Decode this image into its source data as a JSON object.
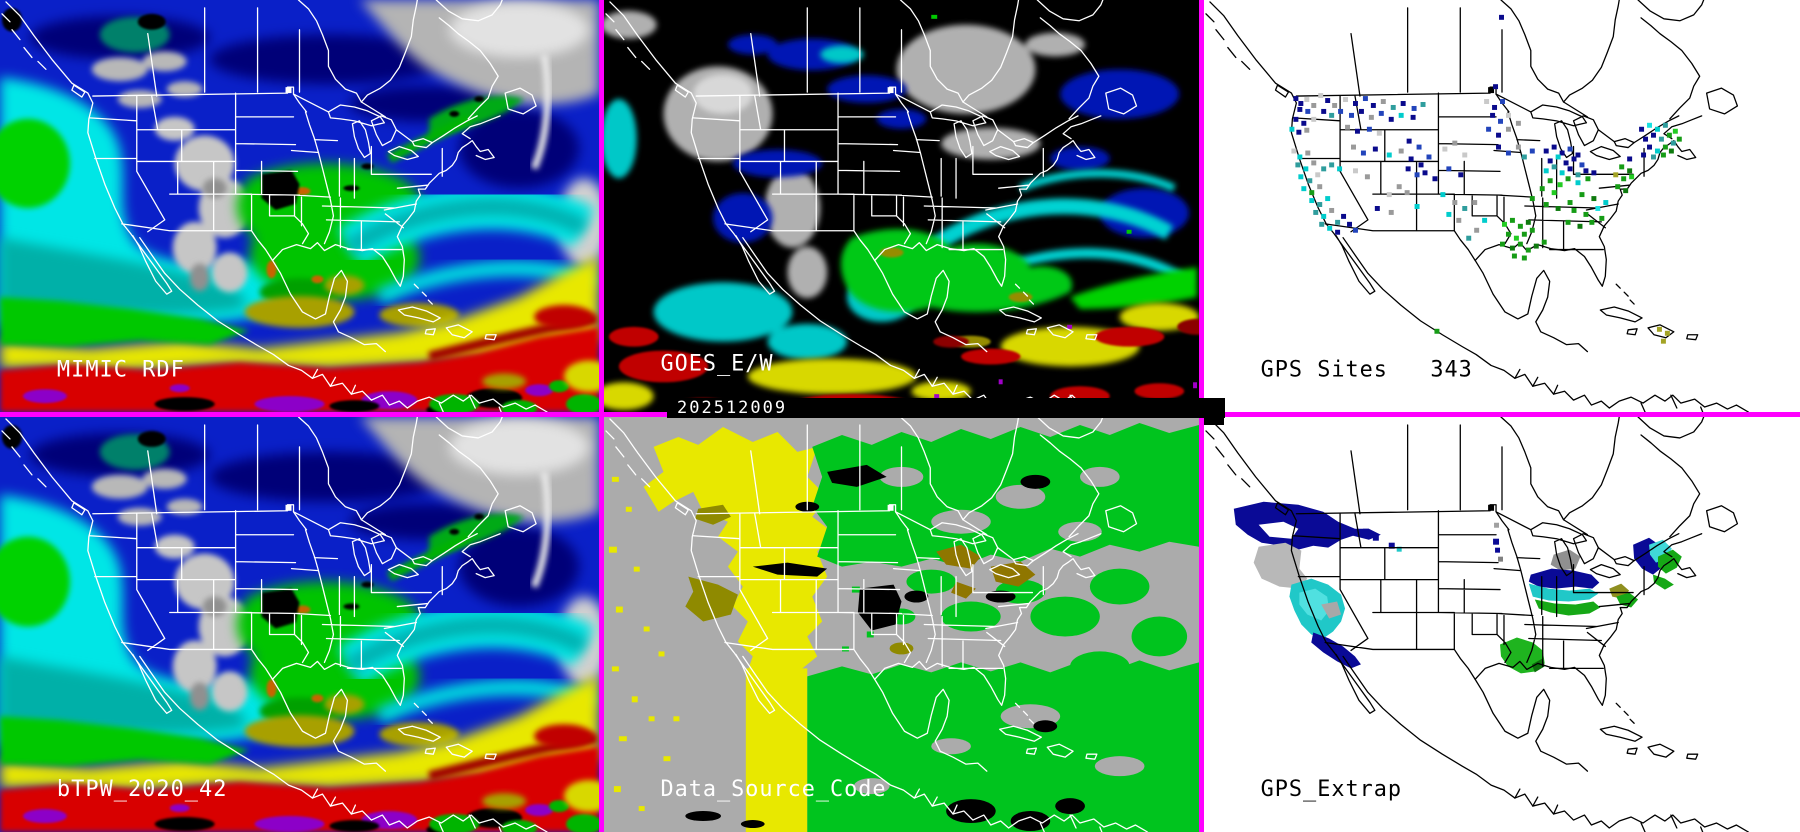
{
  "panels": [
    {
      "id": "mimic-rdf",
      "label": "MIMIC RDF"
    },
    {
      "id": "goes-ew",
      "label": "GOES_E/W",
      "timestamp": "202512009"
    },
    {
      "id": "gps-sites",
      "label": "GPS Sites   343",
      "site_count": "343"
    },
    {
      "id": "btpw",
      "label": "bTPW_2020_42"
    },
    {
      "id": "data-source-code",
      "label": "Data_Source_Code"
    },
    {
      "id": "gps-extrap",
      "label": "GPS_Extrap"
    }
  ],
  "timestamp": "202512009",
  "colors": {
    "divider": "#ff00ff",
    "space_bg": "#000000",
    "map_bg_light": "#ffffff",
    "outline_light": "#ffffff",
    "outline_dark": "#000000",
    "tpw_blue": "#0a20c8",
    "tpw_navy": "#000078",
    "tpw_cyan": "#00e6e6",
    "tpw_teal": "#00b0a8",
    "tpw_green": "#00c400",
    "tpw_yellow": "#e8e800",
    "tpw_khaki": "#a8a000",
    "tpw_red": "#d80000",
    "tpw_purple": "#8c00c8",
    "cloud_gray": "#b8b8b8",
    "dsc_gray": "#ababab",
    "dsc_yellow": "#e8e800",
    "dsc_green": "#00c41e",
    "dsc_olive": "#8f8a00"
  },
  "gps_sites": {
    "palette": {
      "nv": "#0a0a8c",
      "bl": "#2244bb",
      "tl": "#2f9d9d",
      "cy": "#00cccc",
      "bc": "#19e0e0",
      "gn": "#169c16",
      "bg": "#22cc22",
      "dg": "#0e7a0e",
      "gy": "#9a9a9a",
      "lg": "#c9c9c9",
      "ol": "#a3a324"
    },
    "points": [
      [
        299,
        17,
        "nv"
      ],
      [
        293,
        87,
        "nv"
      ],
      [
        92,
        99,
        "nv"
      ],
      [
        97,
        104,
        "nv"
      ],
      [
        103,
        100,
        "lg"
      ],
      [
        96,
        110,
        "nv"
      ],
      [
        104,
        112,
        "bl"
      ],
      [
        110,
        106,
        "gy"
      ],
      [
        92,
        120,
        "nv"
      ],
      [
        100,
        124,
        "nv"
      ],
      [
        110,
        120,
        "lg"
      ],
      [
        117,
        96,
        "lg"
      ],
      [
        124,
        101,
        "nv"
      ],
      [
        131,
        106,
        "gy"
      ],
      [
        120,
        112,
        "nv"
      ],
      [
        128,
        116,
        "tl"
      ],
      [
        137,
        112,
        "bl"
      ],
      [
        88,
        130,
        "cy"
      ],
      [
        95,
        133,
        "nv"
      ],
      [
        103,
        131,
        "gy"
      ],
      [
        142,
        100,
        "lg"
      ],
      [
        152,
        104,
        "nv"
      ],
      [
        162,
        99,
        "bl"
      ],
      [
        170,
        106,
        "nv"
      ],
      [
        180,
        102,
        "gy"
      ],
      [
        190,
        108,
        "tl"
      ],
      [
        200,
        104,
        "nv"
      ],
      [
        211,
        109,
        "bl"
      ],
      [
        220,
        105,
        "tl"
      ],
      [
        148,
        116,
        "bl"
      ],
      [
        158,
        112,
        "nv"
      ],
      [
        168,
        118,
        "gy"
      ],
      [
        178,
        114,
        "bl"
      ],
      [
        188,
        120,
        "nv"
      ],
      [
        198,
        116,
        "cy"
      ],
      [
        210,
        118,
        "nv"
      ],
      [
        144,
        128,
        "gy"
      ],
      [
        154,
        132,
        "nv"
      ],
      [
        166,
        130,
        "bl"
      ],
      [
        176,
        134,
        "lg"
      ],
      [
        90,
        152,
        "lg"
      ],
      [
        96,
        158,
        "cy"
      ],
      [
        104,
        154,
        "gy"
      ],
      [
        94,
        166,
        "tl"
      ],
      [
        102,
        170,
        "cy"
      ],
      [
        110,
        164,
        "gy"
      ],
      [
        97,
        178,
        "cy"
      ],
      [
        106,
        182,
        "tl"
      ],
      [
        114,
        176,
        "lg"
      ],
      [
        120,
        170,
        "tl"
      ],
      [
        128,
        166,
        "tl"
      ],
      [
        136,
        170,
        "cy"
      ],
      [
        100,
        190,
        "cy"
      ],
      [
        108,
        194,
        "gn"
      ],
      [
        116,
        188,
        "gy"
      ],
      [
        108,
        202,
        "cy"
      ],
      [
        116,
        206,
        "tl"
      ],
      [
        124,
        200,
        "cy"
      ],
      [
        112,
        214,
        "tl"
      ],
      [
        120,
        218,
        "cy"
      ],
      [
        128,
        212,
        "gy"
      ],
      [
        118,
        226,
        "tl"
      ],
      [
        126,
        230,
        "cy"
      ],
      [
        134,
        224,
        "tl"
      ],
      [
        140,
        218,
        "nv"
      ],
      [
        146,
        226,
        "nv"
      ],
      [
        134,
        234,
        "nv"
      ],
      [
        152,
        232,
        "bl"
      ],
      [
        150,
        148,
        "gy"
      ],
      [
        160,
        154,
        "bl"
      ],
      [
        172,
        150,
        "nv"
      ],
      [
        186,
        156,
        "cy"
      ],
      [
        198,
        152,
        "gy"
      ],
      [
        152,
        172,
        "lg"
      ],
      [
        164,
        178,
        "gy"
      ],
      [
        205,
        170,
        "nv"
      ],
      [
        214,
        176,
        "bl"
      ],
      [
        196,
        188,
        "gy"
      ],
      [
        186,
        196,
        "lg"
      ],
      [
        204,
        194,
        "gy"
      ],
      [
        214,
        208,
        "cy"
      ],
      [
        188,
        214,
        "gy"
      ],
      [
        174,
        210,
        "nv"
      ],
      [
        206,
        142,
        "nv"
      ],
      [
        216,
        148,
        "bl"
      ],
      [
        208,
        160,
        "nv"
      ],
      [
        218,
        166,
        "nv"
      ],
      [
        226,
        158,
        "bl"
      ],
      [
        222,
        174,
        "nv"
      ],
      [
        232,
        180,
        "nv"
      ],
      [
        242,
        150,
        "lg"
      ],
      [
        252,
        144,
        "gy"
      ],
      [
        262,
        156,
        "lg"
      ],
      [
        246,
        170,
        "bl"
      ],
      [
        258,
        176,
        "nv"
      ],
      [
        240,
        196,
        "cy"
      ],
      [
        252,
        204,
        "gy"
      ],
      [
        262,
        210,
        "tl"
      ],
      [
        272,
        204,
        "gy"
      ],
      [
        246,
        216,
        "cy"
      ],
      [
        256,
        222,
        "gy"
      ],
      [
        284,
        102,
        "lg"
      ],
      [
        292,
        108,
        "nv"
      ],
      [
        300,
        102,
        "bl"
      ],
      [
        290,
        116,
        "nv"
      ],
      [
        298,
        122,
        "bl"
      ],
      [
        306,
        116,
        "lg"
      ],
      [
        286,
        130,
        "bl"
      ],
      [
        296,
        136,
        "nv"
      ],
      [
        306,
        130,
        "gy"
      ],
      [
        316,
        124,
        "gy"
      ],
      [
        296,
        148,
        "nv"
      ],
      [
        306,
        154,
        "bl"
      ],
      [
        316,
        148,
        "gy"
      ],
      [
        322,
        158,
        "tl"
      ],
      [
        330,
        152,
        "bl"
      ],
      [
        344,
        152,
        "nv"
      ],
      [
        352,
        148,
        "nv"
      ],
      [
        360,
        154,
        "nv"
      ],
      [
        368,
        150,
        "bl"
      ],
      [
        376,
        156,
        "nv"
      ],
      [
        348,
        162,
        "nv"
      ],
      [
        356,
        158,
        "cy"
      ],
      [
        364,
        164,
        "nv"
      ],
      [
        372,
        160,
        "nv"
      ],
      [
        380,
        166,
        "bl"
      ],
      [
        344,
        172,
        "cy"
      ],
      [
        352,
        168,
        "tl"
      ],
      [
        360,
        174,
        "cy"
      ],
      [
        368,
        170,
        "nv"
      ],
      [
        376,
        176,
        "tl"
      ],
      [
        384,
        172,
        "nv"
      ],
      [
        348,
        182,
        "gn"
      ],
      [
        358,
        186,
        "bg"
      ],
      [
        366,
        180,
        "gn"
      ],
      [
        376,
        184,
        "cy"
      ],
      [
        386,
        180,
        "gn"
      ],
      [
        392,
        174,
        "nv"
      ],
      [
        340,
        190,
        "gn"
      ],
      [
        352,
        194,
        "bg"
      ],
      [
        330,
        200,
        "gn"
      ],
      [
        344,
        206,
        "gn"
      ],
      [
        356,
        210,
        "dg"
      ],
      [
        368,
        204,
        "gn"
      ],
      [
        440,
        130,
        "nv"
      ],
      [
        448,
        126,
        "bc"
      ],
      [
        456,
        130,
        "cy"
      ],
      [
        464,
        126,
        "tl"
      ],
      [
        452,
        136,
        "nv"
      ],
      [
        444,
        140,
        "nv"
      ],
      [
        460,
        140,
        "tl"
      ],
      [
        468,
        136,
        "gn"
      ],
      [
        474,
        132,
        "bg"
      ],
      [
        448,
        148,
        "nv"
      ],
      [
        456,
        152,
        "cy"
      ],
      [
        464,
        148,
        "gn"
      ],
      [
        472,
        144,
        "tl"
      ],
      [
        478,
        140,
        "gn"
      ],
      [
        442,
        156,
        "nv"
      ],
      [
        452,
        158,
        "tl"
      ],
      [
        462,
        156,
        "gn"
      ],
      [
        470,
        152,
        "dg"
      ],
      [
        428,
        160,
        "nv"
      ],
      [
        420,
        168,
        "gn"
      ],
      [
        428,
        172,
        "dg"
      ],
      [
        414,
        176,
        "ol"
      ],
      [
        422,
        180,
        "gn"
      ],
      [
        430,
        178,
        "bg"
      ],
      [
        416,
        188,
        "gn"
      ],
      [
        424,
        192,
        "dg"
      ],
      [
        380,
        196,
        "gn"
      ],
      [
        392,
        200,
        "dg"
      ],
      [
        372,
        212,
        "gn"
      ],
      [
        384,
        216,
        "gn"
      ],
      [
        396,
        210,
        "bc"
      ],
      [
        404,
        204,
        "cy"
      ],
      [
        366,
        224,
        "gn"
      ],
      [
        378,
        228,
        "dg"
      ],
      [
        390,
        224,
        "gn"
      ],
      [
        400,
        220,
        "gn"
      ],
      [
        302,
        226,
        "bg"
      ],
      [
        310,
        222,
        "gn"
      ],
      [
        318,
        228,
        "gn"
      ],
      [
        326,
        224,
        "dg"
      ],
      [
        306,
        236,
        "gn"
      ],
      [
        314,
        240,
        "bg"
      ],
      [
        322,
        236,
        "gn"
      ],
      [
        330,
        232,
        "gn"
      ],
      [
        300,
        246,
        "gn"
      ],
      [
        310,
        250,
        "dg"
      ],
      [
        318,
        246,
        "gn"
      ],
      [
        326,
        252,
        "gn"
      ],
      [
        334,
        248,
        "dg"
      ],
      [
        342,
        244,
        "gn"
      ],
      [
        312,
        258,
        "gn"
      ],
      [
        322,
        260,
        "gn"
      ],
      [
        282,
        222,
        "cy"
      ],
      [
        274,
        232,
        "gy"
      ],
      [
        266,
        240,
        "tl"
      ],
      [
        234,
        334,
        "gn"
      ],
      [
        458,
        332,
        "ol"
      ],
      [
        466,
        336,
        "ol"
      ],
      [
        462,
        344,
        "ol"
      ]
    ]
  }
}
